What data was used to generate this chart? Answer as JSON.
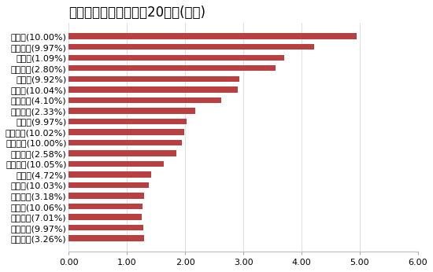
{
  "title": "主力资金净流入金额前20个股(亿元)",
  "categories": [
    "温氏股份(3.26%)",
    "奥维通信(9.97%)",
    "赣能股份(7.01%)",
    "张家界(10.06%)",
    "银泰黄金(3.18%)",
    "人人乐(10.03%)",
    "人民网(4.72%)",
    "华天酒店(10.05%)",
    "中国平安(2.58%)",
    "国脉科技(10.00%)",
    "天地在线(10.02%)",
    "徐家汇(9.97%)",
    "泸州老窖(2.33%)",
    "特变电工(4.10%)",
    "黑芝麻(10.04%)",
    "跨境通(9.92%)",
    "阳光电源(2.80%)",
    "五粮液(1.09%)",
    "首创证券(9.97%)",
    "英飞拓(10.00%)"
  ],
  "values": [
    1.3,
    1.28,
    1.26,
    1.27,
    1.3,
    1.38,
    1.42,
    1.63,
    1.85,
    1.95,
    1.98,
    2.03,
    2.18,
    2.62,
    2.9,
    2.93,
    3.55,
    3.7,
    4.22,
    4.95
  ],
  "bar_color": "#b84040",
  "title_fontsize": 12,
  "tick_fontsize": 8,
  "xlim": [
    0,
    6.0
  ],
  "xticks": [
    0.0,
    1.0,
    2.0,
    3.0,
    4.0,
    5.0,
    6.0
  ],
  "xtick_labels": [
    "0.00",
    "1.00",
    "2.00",
    "3.00",
    "4.00",
    "5.00",
    "6.00"
  ],
  "background_color": "#ffffff",
  "grid_color": "#e0e0e0"
}
